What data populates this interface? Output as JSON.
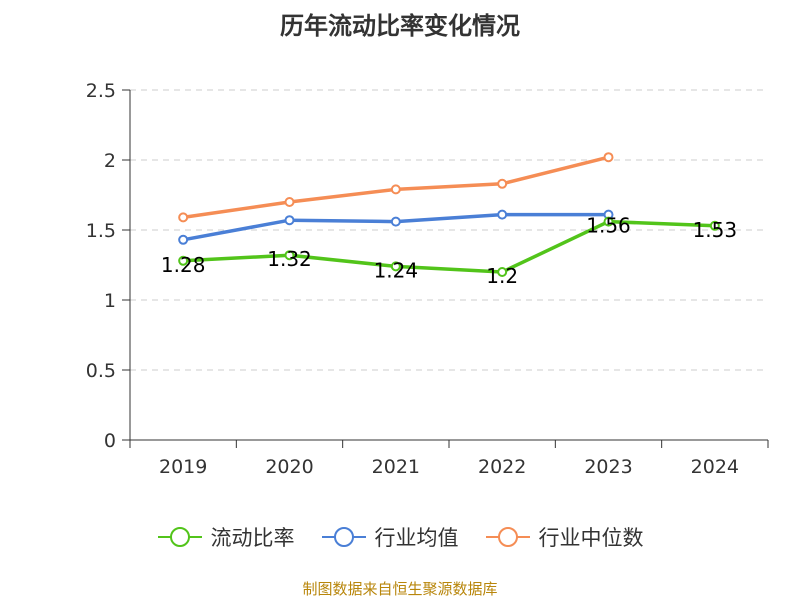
{
  "colors": {
    "current_ratio": "#52c41a",
    "industry_mean": "#4a7fd6",
    "industry_median": "#f58d55",
    "grid": "#cccccc",
    "axis": "#333333",
    "source_note": "#b8860b"
  },
  "chart_data": {
    "type": "line",
    "title": "历年流动比率变化情况",
    "xlabel": "",
    "ylabel": "",
    "categories": [
      "2019",
      "2020",
      "2021",
      "2022",
      "2023",
      "2024"
    ],
    "ylim": [
      0,
      2.5
    ],
    "yticks": [
      "0",
      "0.5",
      "1",
      "1.5",
      "2",
      "2.5"
    ],
    "grid": "horizontal-dashed",
    "legend_position": "bottom",
    "series": [
      {
        "name": "流动比率",
        "color_key": "current_ratio",
        "values": [
          1.28,
          1.32,
          1.24,
          1.2,
          1.56,
          1.53
        ],
        "labels": [
          "1.28",
          "1.32",
          "1.24",
          "1.2",
          "1.56",
          "1.53"
        ]
      },
      {
        "name": "行业均值",
        "color_key": "industry_mean",
        "values": [
          1.43,
          1.57,
          1.56,
          1.61,
          1.61,
          null
        ]
      },
      {
        "name": "行业中位数",
        "color_key": "industry_median",
        "values": [
          1.59,
          1.7,
          1.79,
          1.83,
          2.02,
          null
        ]
      }
    ]
  },
  "footer": {
    "source": "制图数据来自恒生聚源数据库"
  }
}
